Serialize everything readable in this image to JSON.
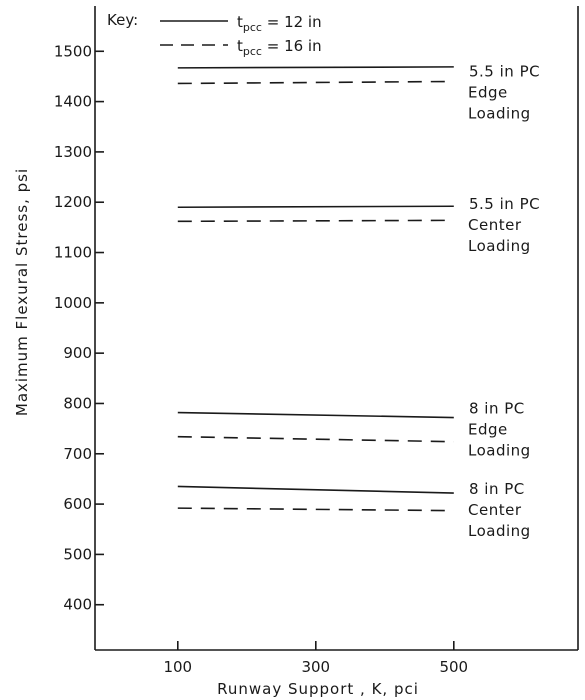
{
  "chart_data": {
    "type": "line",
    "title": "",
    "xlabel": "Runway Support , K, pci",
    "ylabel": "Maximum Flexural Stress, psi",
    "xlim": [
      -20,
      680
    ],
    "ylim": [
      310,
      1590
    ],
    "x_ticks": [
      100,
      300,
      500
    ],
    "y_ticks": [
      400,
      500,
      600,
      700,
      800,
      900,
      1000,
      1100,
      1200,
      1300,
      1400,
      1500
    ],
    "grid": false,
    "legend": {
      "title": "Key:",
      "placement": "top-left",
      "entries": [
        {
          "style": "solid",
          "label_main": "t",
          "label_sub": "pcc",
          "label_value": " = 12 in"
        },
        {
          "style": "dashed",
          "label_main": "t",
          "label_sub": "pcc",
          "label_value": " = 16 in"
        }
      ]
    },
    "series": [
      {
        "style": "solid",
        "x": [
          100,
          500
        ],
        "y": [
          1467,
          1469
        ]
      },
      {
        "style": "dashed",
        "x": [
          100,
          500
        ],
        "y": [
          1436,
          1440
        ]
      },
      {
        "style": "solid",
        "x": [
          100,
          500
        ],
        "y": [
          1190,
          1192
        ]
      },
      {
        "style": "dashed",
        "x": [
          100,
          500
        ],
        "y": [
          1162,
          1164
        ]
      },
      {
        "style": "solid",
        "x": [
          100,
          500
        ],
        "y": [
          782,
          772
        ]
      },
      {
        "style": "dashed",
        "x": [
          100,
          500
        ],
        "y": [
          734,
          724
        ]
      },
      {
        "style": "solid",
        "x": [
          100,
          500
        ],
        "y": [
          635,
          622
        ]
      },
      {
        "style": "dashed",
        "x": [
          100,
          500
        ],
        "y": [
          592,
          587
        ]
      }
    ],
    "annotations": [
      {
        "lines": [
          "5.5 in PC",
          "Edge",
          "Loading"
        ],
        "y": 1460
      },
      {
        "lines": [
          "5.5 in PC",
          "Center",
          "Loading"
        ],
        "y": 1196
      },
      {
        "lines": [
          "8 in PC",
          "Edge",
          "Loading"
        ],
        "y": 790
      },
      {
        "lines": [
          "8 in PC",
          "Center",
          "Loading"
        ],
        "y": 630
      }
    ]
  }
}
